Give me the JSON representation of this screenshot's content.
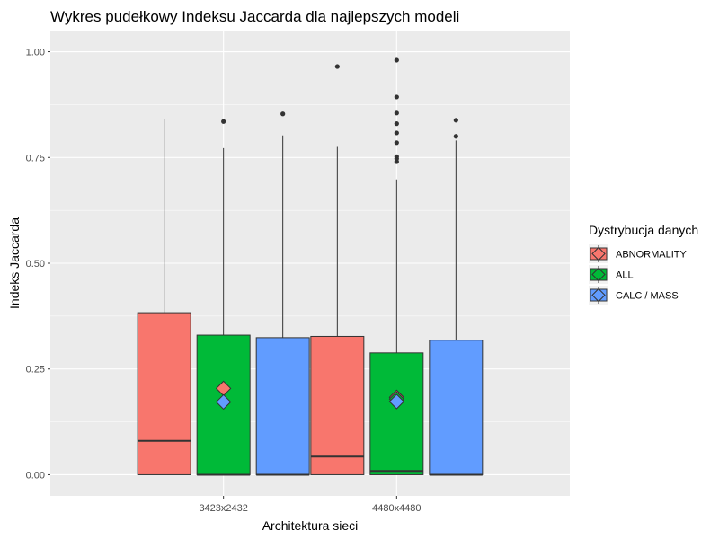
{
  "chart_data": {
    "type": "boxplot",
    "title": "Wykres pudełkowy Indeksu Jaccarda dla najlepszych modeli",
    "xlabel": "Architektura sieci",
    "ylabel": "Indeks Jaccarda",
    "ylim": [
      -0.05,
      1.05
    ],
    "yticks": [
      0.0,
      0.25,
      0.5,
      0.75,
      1.0
    ],
    "ytick_labels": [
      "0.00",
      "0.25",
      "0.50",
      "0.75",
      "1.00"
    ],
    "categories": [
      "3423x2432",
      "4480x4480"
    ],
    "grid": true,
    "legend": {
      "title": "Dystrybucja danych",
      "placement": "right",
      "entries": [
        "ABNORMALITY",
        "ALL",
        "CALC / MASS"
      ]
    },
    "series": [
      {
        "name": "ABNORMALITY",
        "color": "#F8766D",
        "boxes": [
          {
            "category": "3423x2432",
            "min": 0.0,
            "q1": 0.0,
            "median": 0.08,
            "q3": 0.383,
            "max": 0.842,
            "mean": 0.204,
            "outliers": []
          },
          {
            "category": "4480x4480",
            "min": 0.0,
            "q1": 0.0,
            "median": 0.043,
            "q3": 0.327,
            "max": 0.775,
            "mean": 0.183,
            "outliers": [
              0.965
            ]
          }
        ]
      },
      {
        "name": "ALL",
        "color": "#00BA38",
        "boxes": [
          {
            "category": "3423x2432",
            "min": 0.0,
            "q1": 0.0,
            "median": 0.0,
            "q3": 0.33,
            "max": 0.772,
            "mean": null,
            "outliers": [
              0.835
            ]
          },
          {
            "category": "4480x4480",
            "min": 0.0,
            "q1": 0.0,
            "median": 0.009,
            "q3": 0.288,
            "max": 0.698,
            "mean": 0.179,
            "outliers": [
              0.74,
              0.747,
              0.752,
              0.785,
              0.808,
              0.83,
              0.855,
              0.893,
              0.98
            ]
          }
        ]
      },
      {
        "name": "CALC / MASS",
        "color": "#619CFF",
        "boxes": [
          {
            "category": "3423x2432",
            "min": 0.0,
            "q1": 0.0,
            "median": 0.0,
            "q3": 0.324,
            "max": 0.802,
            "mean": 0.172,
            "outliers": [
              0.853
            ]
          },
          {
            "category": "4480x4480",
            "min": 0.0,
            "q1": 0.0,
            "median": 0.0,
            "q3": 0.318,
            "max": 0.79,
            "mean": 0.173,
            "outliers": [
              0.8,
              0.838
            ]
          }
        ]
      }
    ]
  }
}
